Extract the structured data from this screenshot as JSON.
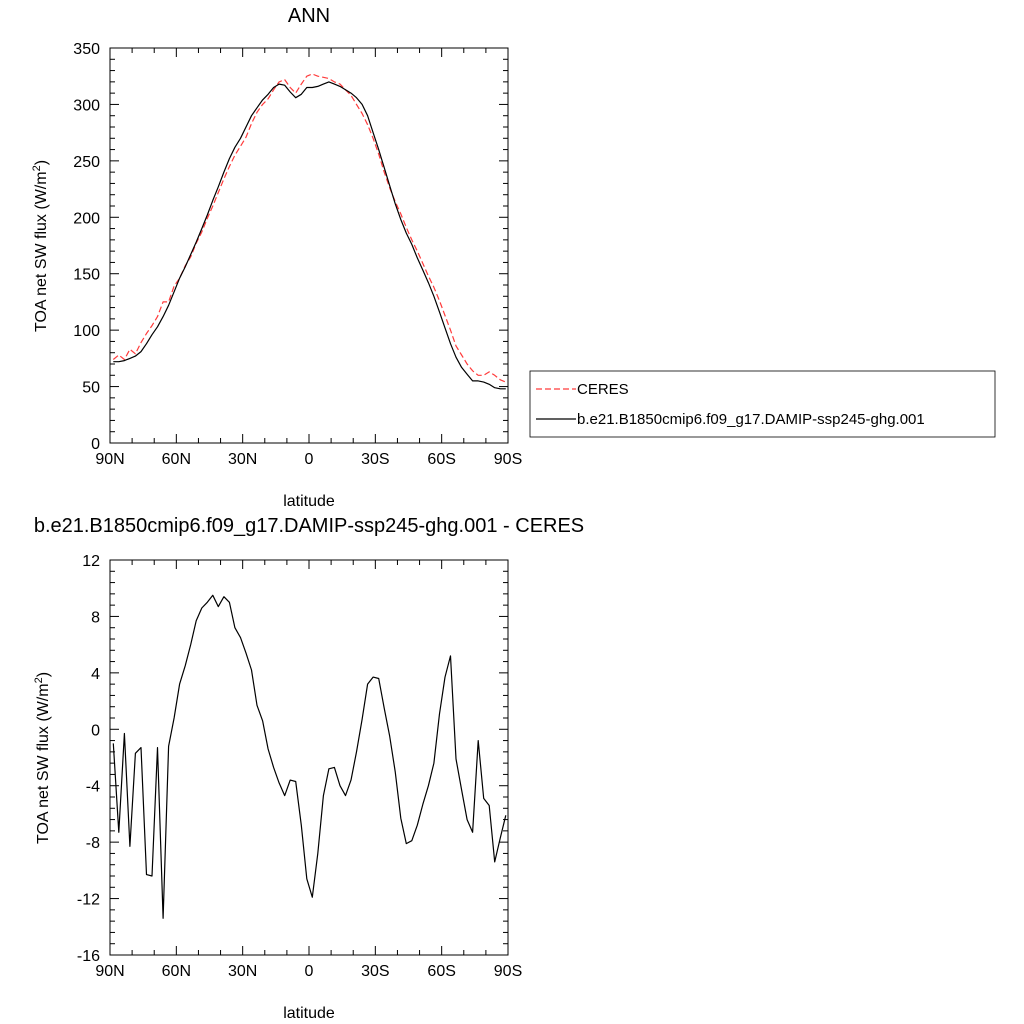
{
  "colors": {
    "model": "#000000",
    "ceres": "#ff3b3b",
    "frame": "#000000",
    "background": "#ffffff"
  },
  "chart_data": [
    {
      "type": "line",
      "title": "ANN",
      "xlabel": "latitude",
      "ylabel": "TOA net SW flux (W/m²)",
      "ylabel_parts": [
        "TOA net SW flux (W/m",
        "2",
        ")"
      ],
      "xlim": [
        -90,
        90
      ],
      "ylim": [
        0,
        350
      ],
      "xticks": [
        -90,
        -60,
        -30,
        0,
        30,
        60,
        90
      ],
      "xticklabels": [
        "90N",
        "60N",
        "30N",
        "0",
        "30S",
        "60S",
        "90S"
      ],
      "yticks": [
        0,
        50,
        100,
        150,
        200,
        250,
        300,
        350
      ],
      "yticklabels": [
        "0",
        "50",
        "100",
        "150",
        "200",
        "250",
        "300",
        "350"
      ],
      "legend": {
        "placement": "right, outside",
        "entries": [
          "CERES",
          "b.e21.B1850cmip6.f09_g17.DAMIP-ssp245-ghg.001"
        ]
      },
      "series": [
        {
          "name": "CERES",
          "style": "dashed",
          "color": "#ff3b3b",
          "x": [
            -88.5,
            -86,
            -83.5,
            -81,
            -78.5,
            -76,
            -73.5,
            -71,
            -68.5,
            -66,
            -63.5,
            -61,
            -58.5,
            -56,
            -53.5,
            -51,
            -48.5,
            -46,
            -43.5,
            -41,
            -38.5,
            -36,
            -33.5,
            -31,
            -28.5,
            -26,
            -23.5,
            -21,
            -18.5,
            -16,
            -13.5,
            -11,
            -8.5,
            -6,
            -3.5,
            -1,
            1.5,
            4,
            6.5,
            9,
            11.5,
            14,
            16.5,
            19,
            21.5,
            24,
            26.5,
            29,
            31.5,
            34,
            36.5,
            39,
            41.5,
            44,
            46.5,
            49,
            51.5,
            54,
            56.5,
            59,
            61.5,
            64,
            66.5,
            69,
            71.5,
            74,
            76.5,
            79,
            81.5,
            84,
            86.5,
            89
          ],
          "y": [
            74,
            78,
            74,
            83,
            79,
            89,
            97,
            104,
            112,
            125,
            125,
            139,
            146,
            157,
            165,
            177,
            187,
            199,
            210,
            222,
            234,
            245,
            255,
            263,
            271,
            283,
            293,
            300,
            305,
            313,
            320,
            322,
            315,
            310,
            318,
            325,
            327,
            325,
            324,
            323,
            320,
            318,
            313,
            308,
            300,
            292,
            282,
            270,
            256,
            240,
            226,
            214,
            203,
            191,
            180,
            170,
            159,
            148,
            138,
            126,
            113,
            100,
            86,
            78,
            70,
            64,
            60,
            60,
            63,
            60,
            56,
            54
          ]
        },
        {
          "name": "b.e21.B1850cmip6.f09_g17.DAMIP-ssp245-ghg.001",
          "style": "solid",
          "color": "#000000",
          "x": [
            -88.5,
            -86,
            -83.5,
            -81,
            -78.5,
            -76,
            -73.5,
            -71,
            -68.5,
            -66,
            -63.5,
            -61,
            -58.5,
            -56,
            -53.5,
            -51,
            -48.5,
            -46,
            -43.5,
            -41,
            -38.5,
            -36,
            -33.5,
            -31,
            -28.5,
            -26,
            -23.5,
            -21,
            -18.5,
            -16,
            -13.5,
            -11,
            -8.5,
            -6,
            -3.5,
            -1,
            1.5,
            4,
            6.5,
            9,
            11.5,
            14,
            16.5,
            19,
            21.5,
            24,
            26.5,
            29,
            31.5,
            34,
            36.5,
            39,
            41.5,
            44,
            46.5,
            49,
            51.5,
            54,
            56.5,
            59,
            61.5,
            64,
            66.5,
            69,
            71.5,
            74,
            76.5,
            79,
            81.5,
            84,
            86.5,
            89
          ],
          "y": [
            72,
            72,
            73,
            75,
            77,
            81,
            88,
            96,
            103,
            112,
            122,
            134,
            146,
            156,
            167,
            178,
            190,
            202,
            215,
            227,
            240,
            252,
            262,
            270,
            280,
            290,
            297,
            304,
            309,
            315,
            318,
            317,
            311,
            306,
            309,
            315,
            315,
            316,
            318,
            320,
            318,
            316,
            313,
            310,
            306,
            300,
            290,
            275,
            260,
            244,
            228,
            212,
            198,
            186,
            176,
            164,
            153,
            142,
            130,
            116,
            102,
            88,
            76,
            67,
            61,
            55,
            55,
            54,
            52,
            49,
            48,
            48
          ]
        }
      ]
    },
    {
      "type": "line",
      "title": "b.e21.B1850cmip6.f09_g17.DAMIP-ssp245-ghg.001 - CERES",
      "xlabel": "latitude",
      "ylabel": "TOA net SW flux (W/m²)",
      "ylabel_parts": [
        "TOA net SW flux (W/m",
        "2",
        ")"
      ],
      "xlim": [
        -90,
        90
      ],
      "ylim": [
        -16,
        12
      ],
      "xticks": [
        -90,
        -60,
        -30,
        0,
        30,
        60,
        90
      ],
      "xticklabels": [
        "90N",
        "60N",
        "30N",
        "0",
        "30S",
        "60S",
        "90S"
      ],
      "yticks": [
        -16,
        -12,
        -8,
        -4,
        0,
        4,
        8,
        12
      ],
      "yticklabels": [
        "-16",
        "-12",
        "-8",
        "-4",
        "0",
        "4",
        "8",
        "12"
      ],
      "series": [
        {
          "style": "solid",
          "color": "#000000",
          "x": [
            -88.5,
            -86,
            -83.5,
            -81,
            -78.5,
            -76,
            -73.5,
            -71,
            -68.5,
            -66,
            -63.5,
            -61,
            -58.5,
            -56,
            -53.5,
            -51,
            -48.5,
            -46,
            -43.5,
            -41,
            -38.5,
            -36,
            -33.5,
            -31,
            -28.5,
            -26,
            -23.5,
            -21,
            -18.5,
            -16,
            -13.5,
            -11,
            -8.5,
            -6,
            -3.5,
            -1,
            1.5,
            4,
            6.5,
            9,
            11.5,
            14,
            16.5,
            19,
            21.5,
            24,
            26.5,
            29,
            31.5,
            34,
            36.5,
            39,
            41.5,
            44,
            46.5,
            49,
            51.5,
            54,
            56.5,
            59,
            61.5,
            64,
            66.5,
            69,
            71.5,
            74,
            76.5,
            79,
            81.5,
            84,
            86.5,
            89
          ],
          "y": [
            -1.0,
            -7.3,
            -0.3,
            -8.3,
            -1.7,
            -1.3,
            -10.3,
            -10.4,
            -1.3,
            -13.4,
            -1.2,
            0.8,
            3.2,
            4.5,
            6.0,
            7.7,
            8.6,
            9.0,
            9.5,
            8.7,
            9.4,
            9.0,
            7.2,
            6.5,
            5.4,
            4.2,
            1.7,
            0.6,
            -1.4,
            -2.7,
            -3.8,
            -4.7,
            -3.6,
            -3.7,
            -6.8,
            -10.6,
            -11.9,
            -8.8,
            -4.7,
            -2.8,
            -2.7,
            -4.0,
            -4.7,
            -3.6,
            -1.6,
            0.7,
            3.2,
            3.7,
            3.6,
            1.5,
            -0.5,
            -3.0,
            -6.3,
            -8.1,
            -7.9,
            -6.8,
            -5.3,
            -4.0,
            -2.4,
            1.1,
            3.7,
            5.2,
            -2.1,
            -4.3,
            -6.4,
            -7.3,
            -0.8,
            -4.9,
            -5.4,
            -9.4,
            -7.7,
            -6.1
          ]
        }
      ]
    }
  ]
}
